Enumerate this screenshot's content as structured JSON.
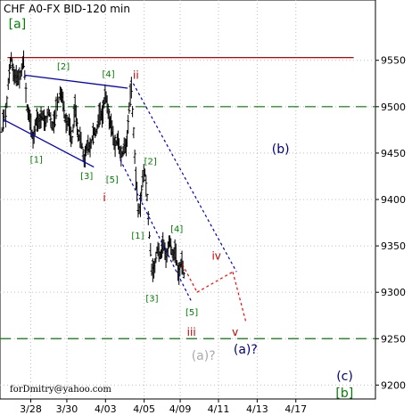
{
  "chart_data": {
    "type": "ohlc",
    "title": "CHF A0-FX BID-120 min",
    "y_ticks": [
      "9550",
      "9500",
      "9450",
      "9400",
      "9350",
      "9300",
      "9250",
      "9200"
    ],
    "y_tick_values": [
      0.955,
      0.95,
      0.945,
      0.94,
      0.935,
      0.93,
      0.925,
      0.92
    ],
    "ylim": [
      0.9185,
      0.9615
    ],
    "x_ticks": [
      "3/28",
      "3/30",
      "4/03",
      "4/05",
      "4/09",
      "4/11",
      "4/13",
      "4/17"
    ],
    "xlim": [
      0,
      100
    ],
    "x_tick_values": [
      8.2,
      17.8,
      28.1,
      38.4,
      48.0,
      58.2,
      68.5,
      78.8
    ],
    "grid": true,
    "grid_style": "dotted",
    "colors": {
      "bars": "#000000",
      "resistance": "#c00000",
      "support_dash": "#008000",
      "channel": "#0000cc",
      "projection_red": "#ff0000",
      "wave_green": "#008000",
      "wave_red": "#c00000",
      "wave_navy": "#000080",
      "wave_gray": "#aaaaaa"
    },
    "levels": {
      "resistance": 0.9553,
      "support_upper": 0.95,
      "support_lower": 0.925
    },
    "price_series": [
      [
        0.5,
        0.9475
      ],
      [
        1.5,
        0.949
      ],
      [
        2.2,
        0.953
      ],
      [
        3.0,
        0.9548
      ],
      [
        3.8,
        0.9538
      ],
      [
        4.6,
        0.9525
      ],
      [
        5.5,
        0.954
      ],
      [
        6.3,
        0.9545
      ],
      [
        7.2,
        0.9505
      ],
      [
        8.0,
        0.948
      ],
      [
        8.8,
        0.947
      ],
      [
        9.6,
        0.9478
      ],
      [
        10.4,
        0.949
      ],
      [
        11.2,
        0.9485
      ],
      [
        12.0,
        0.9488
      ],
      [
        12.9,
        0.949
      ],
      [
        13.8,
        0.9485
      ],
      [
        14.6,
        0.9482
      ],
      [
        15.3,
        0.9505
      ],
      [
        16.0,
        0.952
      ],
      [
        16.8,
        0.95
      ],
      [
        17.6,
        0.9488
      ],
      [
        18.4,
        0.9475
      ],
      [
        19.2,
        0.947
      ],
      [
        20.0,
        0.9495
      ],
      [
        20.8,
        0.9475
      ],
      [
        21.6,
        0.9458
      ],
      [
        22.4,
        0.9448
      ],
      [
        23.2,
        0.9452
      ],
      [
        24.0,
        0.9462
      ],
      [
        24.8,
        0.9465
      ],
      [
        25.6,
        0.9478
      ],
      [
        26.4,
        0.9485
      ],
      [
        27.2,
        0.9495
      ],
      [
        28.0,
        0.9508
      ],
      [
        28.8,
        0.95
      ],
      [
        29.6,
        0.9475
      ],
      [
        30.4,
        0.9465
      ],
      [
        31.2,
        0.946
      ],
      [
        32.0,
        0.9455
      ],
      [
        32.8,
        0.9448
      ],
      [
        33.6,
        0.946
      ],
      [
        34.4,
        0.9495
      ],
      [
        35.0,
        0.9518
      ],
      [
        35.6,
        0.9478
      ],
      [
        36.2,
        0.942
      ],
      [
        36.8,
        0.9385
      ],
      [
        37.4,
        0.94
      ],
      [
        38.0,
        0.942
      ],
      [
        38.6,
        0.9425
      ],
      [
        39.2,
        0.9408
      ],
      [
        39.8,
        0.936
      ],
      [
        40.4,
        0.932
      ],
      [
        41.0,
        0.933
      ],
      [
        41.8,
        0.934
      ],
      [
        42.6,
        0.9345
      ],
      [
        43.4,
        0.9348
      ],
      [
        44.2,
        0.9342
      ],
      [
        45.0,
        0.935
      ],
      [
        45.8,
        0.9348
      ],
      [
        46.6,
        0.934
      ],
      [
        47.4,
        0.9325
      ],
      [
        48.2,
        0.9328
      ],
      [
        49.0,
        0.9322
      ]
    ],
    "channel_lines": [
      [
        [
          1.0,
          0.9486
        ],
        [
          25.0,
          0.9435
        ]
      ],
      [
        [
          6.5,
          0.9534
        ],
        [
          34.0,
          0.952
        ]
      ],
      [
        [
          35.5,
          0.9525
        ],
        [
          63.0,
          0.9322
        ]
      ],
      [
        [
          32.0,
          0.9443
        ],
        [
          51.0,
          0.929
        ]
      ]
    ],
    "projection_path": [
      [
        48.6,
        0.933
      ],
      [
        52.5,
        0.93
      ],
      [
        62.0,
        0.9322
      ],
      [
        65.5,
        0.9268
      ]
    ],
    "wave_labels": [
      {
        "text": "[a]",
        "x": 2.3,
        "y": 0.9585,
        "color": "green",
        "size": "large"
      },
      {
        "text": "[2]",
        "x": 15.2,
        "y": 0.954,
        "color": "green",
        "size": "small"
      },
      {
        "text": "[4]",
        "x": 27.2,
        "y": 0.9532,
        "color": "green",
        "size": "small"
      },
      {
        "text": "ii",
        "x": 35.4,
        "y": 0.953,
        "color": "red",
        "size": "medium"
      },
      {
        "text": "[1]",
        "x": 8.0,
        "y": 0.944,
        "color": "green",
        "size": "small"
      },
      {
        "text": "[3]",
        "x": 21.4,
        "y": 0.9422,
        "color": "green",
        "size": "small"
      },
      {
        "text": "[5]",
        "x": 28.2,
        "y": 0.9418,
        "color": "green",
        "size": "small"
      },
      {
        "text": "i",
        "x": 27.4,
        "y": 0.9398,
        "color": "red",
        "size": "medium"
      },
      {
        "text": "[2]",
        "x": 38.4,
        "y": 0.9438,
        "color": "green",
        "size": "small"
      },
      {
        "text": "[1]",
        "x": 35.0,
        "y": 0.9358,
        "color": "green",
        "size": "small"
      },
      {
        "text": "[4]",
        "x": 45.4,
        "y": 0.9365,
        "color": "green",
        "size": "small"
      },
      {
        "text": "[3]",
        "x": 38.8,
        "y": 0.929,
        "color": "green",
        "size": "small"
      },
      {
        "text": "[5]",
        "x": 49.4,
        "y": 0.9275,
        "color": "green",
        "size": "small"
      },
      {
        "text": "iv",
        "x": 56.4,
        "y": 0.9335,
        "color": "red",
        "size": "medium"
      },
      {
        "text": "iii",
        "x": 49.8,
        "y": 0.9253,
        "color": "red",
        "size": "medium"
      },
      {
        "text": "v",
        "x": 61.8,
        "y": 0.9253,
        "color": "red",
        "size": "medium"
      },
      {
        "text": "(b)",
        "x": 72.4,
        "y": 0.945,
        "color": "navy",
        "size": "large"
      },
      {
        "text": "(a)?",
        "x": 51.0,
        "y": 0.9227,
        "color": "gray",
        "size": "large"
      },
      {
        "text": "(a)?",
        "x": 62.2,
        "y": 0.9234,
        "color": "navy",
        "size": "large"
      },
      {
        "text": "(c)",
        "x": 89.6,
        "y": 0.9205,
        "color": "navy",
        "size": "large"
      },
      {
        "text": "[b]",
        "x": 89.4,
        "y": 0.9187,
        "color": "green",
        "size": "large"
      }
    ],
    "watermark": "forDmitry@yahoo.com"
  }
}
